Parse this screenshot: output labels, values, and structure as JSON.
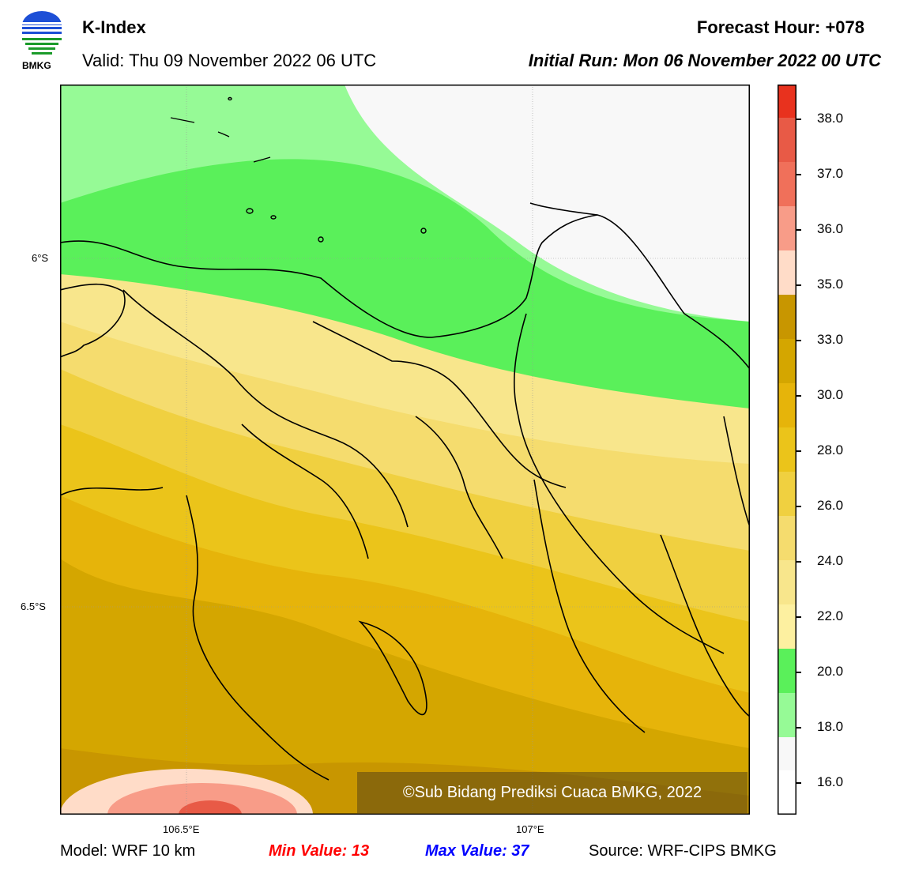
{
  "header": {
    "logo_text": "BMKG",
    "title": "K-Index",
    "valid": "Valid: Thu 09 November 2022 06 UTC",
    "forecast_hour": "Forecast Hour: +078",
    "initial_run": "Initial Run: Mon 06 November 2022 00 UTC"
  },
  "map": {
    "lat_labels": [
      "6°S",
      "6.5°S"
    ],
    "lon_labels": [
      "106.5°E",
      "107°E"
    ],
    "copyright": "©Sub Bidang Prediksi Cuaca BMKG, 2022"
  },
  "colorbar": {
    "labels": [
      "38.0",
      "37.0",
      "36.0",
      "35.0",
      "33.0",
      "30.0",
      "28.0",
      "26.0",
      "24.0",
      "22.0",
      "20.0",
      "18.0",
      "16.0"
    ],
    "colors": [
      "#e8321e",
      "#e85a46",
      "#f0705a",
      "#f89c88",
      "#ffdcc8",
      "#c89600",
      "#d4a600",
      "#e6b40a",
      "#ebc41a",
      "#f0d040",
      "#f5dc6e",
      "#f8e68c",
      "#fdf0a0",
      "#5af05a",
      "#96fa96",
      "#f8f8f8"
    ]
  },
  "footer": {
    "model": "Model: WRF 10 km",
    "min": "Min Value: 13",
    "max": "Max Value: 37",
    "source": "Source: WRF-CIPS BMKG"
  }
}
